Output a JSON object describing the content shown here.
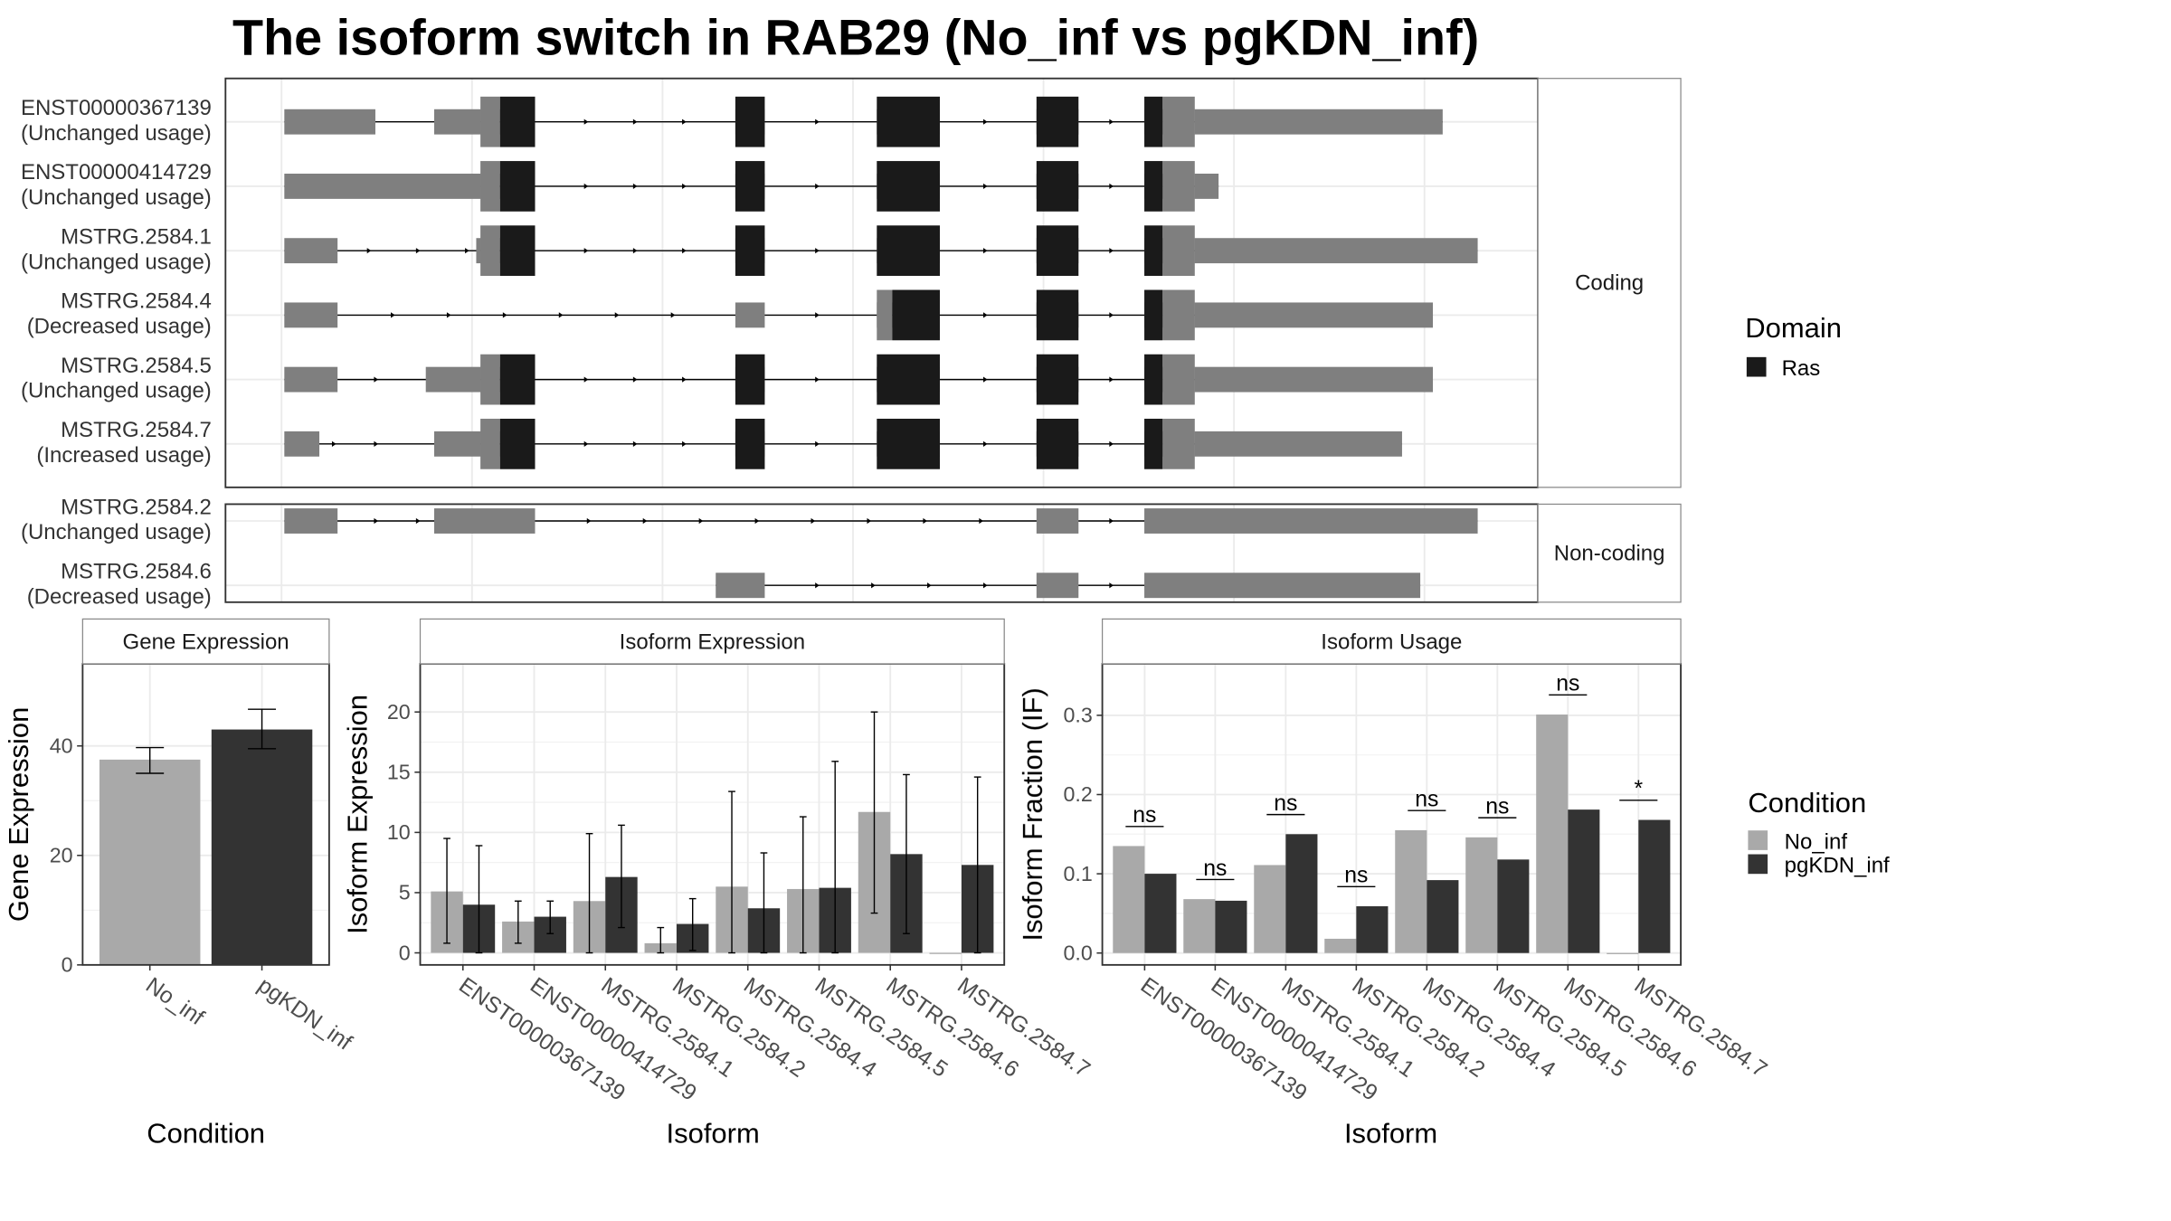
{
  "title": "The isoform switch in RAB29 (No_inf vs pgKDN_inf)",
  "colors": {
    "domain": "#1a1a1a",
    "exon": "#7f7f7f",
    "no_inf": "#a9a9a9",
    "pgkdn_inf": "#333333",
    "grid": "#ebebeb",
    "strip": "#ffffff"
  },
  "structure": {
    "coding_label": "Coding",
    "noncoding_label": "Non-coding",
    "coding": [
      {
        "id": "ENST00000367139",
        "usage": "(Unchanged usage)",
        "exons": [
          [
            203,
            268
          ],
          [
            310,
            343
          ],
          [
            343,
            357
          ],
          [
            525,
            546
          ],
          [
            626,
            671
          ],
          [
            740,
            770
          ],
          [
            817,
            830
          ],
          [
            830,
            853
          ],
          [
            853,
            1030
          ]
        ],
        "domain": [
          [
            357,
            382
          ],
          [
            525,
            546
          ],
          [
            626,
            671
          ],
          [
            740,
            770
          ],
          [
            817,
            830
          ]
        ],
        "thick": [
          [
            343,
            357
          ],
          [
            830,
            853
          ]
        ],
        "arrows": [
          420,
          455,
          490,
          585,
          705,
          795
        ]
      },
      {
        "id": "ENST00000414729",
        "usage": "(Unchanged usage)",
        "exons": [
          [
            203,
            343
          ],
          [
            343,
            357
          ],
          [
            525,
            546
          ],
          [
            626,
            671
          ],
          [
            740,
            770
          ],
          [
            817,
            830
          ],
          [
            830,
            853
          ],
          [
            853,
            870
          ]
        ],
        "domain": [
          [
            357,
            382
          ],
          [
            525,
            546
          ],
          [
            626,
            671
          ],
          [
            740,
            770
          ],
          [
            817,
            830
          ]
        ],
        "thick": [
          [
            343,
            357
          ],
          [
            830,
            853
          ]
        ],
        "arrows": [
          420,
          455,
          490,
          585,
          705,
          795
        ]
      },
      {
        "id": "MSTRG.2584.1",
        "usage": "(Unchanged usage)",
        "exons": [
          [
            203,
            241
          ],
          [
            340,
            343
          ],
          [
            343,
            357
          ],
          [
            525,
            546
          ],
          [
            626,
            671
          ],
          [
            740,
            770
          ],
          [
            817,
            830
          ],
          [
            830,
            853
          ],
          [
            853,
            1055
          ]
        ],
        "domain": [
          [
            357,
            382
          ],
          [
            525,
            546
          ],
          [
            626,
            671
          ],
          [
            740,
            770
          ],
          [
            817,
            830
          ]
        ],
        "thick": [
          [
            343,
            357
          ],
          [
            830,
            853
          ]
        ],
        "arrows": [
          265,
          300,
          335,
          420,
          455,
          490,
          585,
          705,
          795
        ]
      },
      {
        "id": "MSTRG.2584.4",
        "usage": "(Decreased usage)",
        "exons": [
          [
            203,
            241
          ],
          [
            525,
            546
          ],
          [
            626,
            637
          ],
          [
            740,
            770
          ],
          [
            817,
            830
          ],
          [
            830,
            853
          ],
          [
            853,
            1023
          ]
        ],
        "domain": [
          [
            637,
            671
          ],
          [
            740,
            770
          ],
          [
            817,
            830
          ]
        ],
        "thick": [
          [
            626,
            637
          ],
          [
            830,
            853
          ]
        ],
        "arrows": [
          282,
          322,
          362,
          402,
          442,
          482,
          585,
          705,
          795
        ]
      },
      {
        "id": "MSTRG.2584.5",
        "usage": "(Unchanged usage)",
        "exons": [
          [
            203,
            241
          ],
          [
            304,
            343
          ],
          [
            343,
            357
          ],
          [
            525,
            546
          ],
          [
            626,
            671
          ],
          [
            740,
            770
          ],
          [
            817,
            830
          ],
          [
            830,
            853
          ],
          [
            853,
            1023
          ]
        ],
        "domain": [
          [
            357,
            382
          ],
          [
            525,
            546
          ],
          [
            626,
            671
          ],
          [
            740,
            770
          ],
          [
            817,
            830
          ]
        ],
        "thick": [
          [
            343,
            357
          ],
          [
            830,
            853
          ]
        ],
        "arrows": [
          270,
          420,
          455,
          490,
          585,
          705,
          795
        ]
      },
      {
        "id": "MSTRG.2584.7",
        "usage": "(Increased usage)",
        "exons": [
          [
            203,
            228
          ],
          [
            310,
            343
          ],
          [
            343,
            357
          ],
          [
            525,
            546
          ],
          [
            626,
            671
          ],
          [
            740,
            770
          ],
          [
            817,
            830
          ],
          [
            830,
            853
          ],
          [
            853,
            1001
          ]
        ],
        "domain": [
          [
            357,
            382
          ],
          [
            525,
            546
          ],
          [
            626,
            671
          ],
          [
            740,
            770
          ],
          [
            817,
            830
          ]
        ],
        "thick": [
          [
            343,
            357
          ],
          [
            830,
            853
          ]
        ],
        "arrows": [
          240,
          270,
          420,
          455,
          490,
          585,
          705,
          795
        ]
      }
    ],
    "noncoding": [
      {
        "id": "MSTRG.2584.2",
        "usage": "(Unchanged usage)",
        "exons": [
          [
            203,
            241
          ],
          [
            310,
            382
          ],
          [
            740,
            770
          ],
          [
            817,
            1055
          ]
        ],
        "arrows": [
          270,
          300,
          422,
          462,
          502,
          542,
          582,
          622,
          662,
          702,
          795
        ]
      },
      {
        "id": "MSTRG.2584.6",
        "usage": "(Decreased usage)",
        "exons": [
          [
            511,
            546
          ],
          [
            740,
            770
          ],
          [
            817,
            1014
          ]
        ],
        "arrows": [
          585,
          625,
          665,
          705,
          795
        ]
      }
    ]
  },
  "legend_domain": {
    "title": "Domain",
    "items": [
      {
        "label": "Ras",
        "color": "#1a1a1a"
      }
    ]
  },
  "legend_condition": {
    "title": "Condition",
    "items": [
      {
        "label": "No_inf",
        "color": "#a9a9a9"
      },
      {
        "label": "pgKDN_inf",
        "color": "#333333"
      }
    ]
  },
  "chart_data": [
    {
      "type": "bar",
      "title": "Gene Expression",
      "xlabel": "Condition",
      "ylabel": "Gene Expression",
      "categories": [
        "No_inf",
        "pgKDN_inf"
      ],
      "values": [
        37.5,
        43.0
      ],
      "error_low": [
        35.0,
        39.5
      ],
      "error_high": [
        39.7,
        46.7
      ],
      "ylim": [
        0,
        55
      ],
      "yticks": [
        0,
        20,
        40
      ]
    },
    {
      "type": "bar",
      "title": "Isoform Expression",
      "xlabel": "Isoform",
      "ylabel": "Isoform Expression",
      "categories": [
        "ENST00000367139",
        "ENST00000414729",
        "MSTRG.2584.1",
        "MSTRG.2584.2",
        "MSTRG.2584.4",
        "MSTRG.2584.5",
        "MSTRG.2584.6",
        "MSTRG.2584.7"
      ],
      "series": [
        {
          "name": "No_inf",
          "values": [
            5.1,
            2.6,
            4.3,
            0.8,
            5.5,
            5.3,
            11.7,
            0.0
          ],
          "error_low": [
            0.8,
            0.8,
            0.0,
            0.0,
            0.0,
            0.0,
            3.3,
            0.0
          ],
          "error_high": [
            9.5,
            4.3,
            9.9,
            2.1,
            13.4,
            11.3,
            20.0,
            0.0
          ]
        },
        {
          "name": "pgKDN_inf",
          "values": [
            4.0,
            3.0,
            6.3,
            2.4,
            3.7,
            5.4,
            8.2,
            7.3
          ],
          "error_low": [
            0.0,
            1.6,
            2.1,
            0.2,
            0.0,
            0.0,
            1.6,
            0.0
          ],
          "error_high": [
            8.9,
            4.3,
            10.6,
            4.5,
            8.3,
            15.9,
            14.8,
            14.6
          ]
        }
      ],
      "ylim": [
        -1,
        24
      ],
      "yticks": [
        0,
        5,
        10,
        15,
        20
      ]
    },
    {
      "type": "bar",
      "title": "Isoform Usage",
      "xlabel": "Isoform",
      "ylabel": "Isoform Fraction (IF)",
      "categories": [
        "ENST00000367139",
        "ENST00000414729",
        "MSTRG.2584.1",
        "MSTRG.2584.2",
        "MSTRG.2584.4",
        "MSTRG.2584.5",
        "MSTRG.2584.6",
        "MSTRG.2584.7"
      ],
      "series": [
        {
          "name": "No_inf",
          "values": [
            0.135,
            0.068,
            0.111,
            0.018,
            0.155,
            0.146,
            0.301,
            0.0
          ]
        },
        {
          "name": "pgKDN_inf",
          "values": [
            0.1,
            0.066,
            0.15,
            0.059,
            0.092,
            0.118,
            0.181,
            0.168
          ]
        }
      ],
      "significance": [
        "ns",
        "ns",
        "ns",
        "ns",
        "ns",
        "ns",
        "ns",
        "*"
      ],
      "ylim": [
        -0.015,
        0.365
      ],
      "yticks": [
        0.0,
        0.1,
        0.2,
        0.3
      ]
    }
  ]
}
